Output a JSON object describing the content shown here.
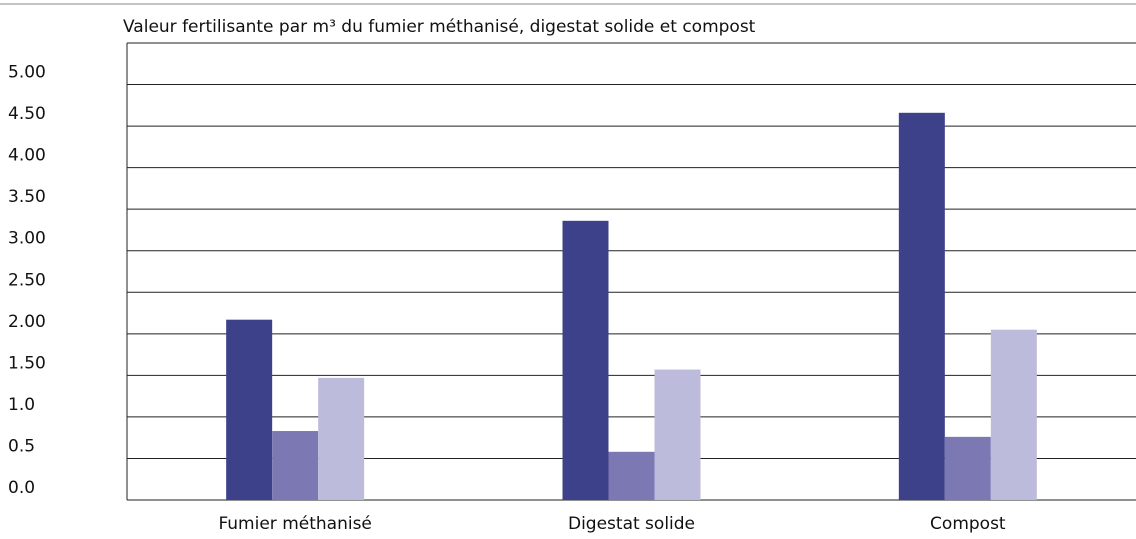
{
  "chart_data": {
    "type": "bar",
    "title": "Valeur fertilisante par m³ du fumier méthanisé, digestat solide et compost",
    "categories": [
      "Fumier méthanisé",
      "Digestat solide",
      "Compost"
    ],
    "series": [
      {
        "color": "#3d4189",
        "values": [
          2.17,
          3.36,
          4.66
        ]
      },
      {
        "color": "#7b78b3",
        "values": [
          0.83,
          0.58,
          0.76
        ]
      },
      {
        "color": "#bdbbdb",
        "values": [
          1.47,
          1.57,
          2.05
        ]
      }
    ],
    "ylim": [
      0,
      5.5
    ],
    "yticks": [
      {
        "value": 0,
        "label": "0.0"
      },
      0.5,
      {
        "value": 1,
        "label": "1.0"
      },
      {
        "value": 1.5,
        "label": "1.50"
      },
      {
        "value": 2,
        "label": "2.00"
      },
      {
        "value": 2.5,
        "label": "2.50"
      },
      {
        "value": 3,
        "label": "3.00"
      },
      {
        "value": 3.5,
        "label": "3.50"
      },
      {
        "value": 4,
        "label": "4.00"
      },
      {
        "value": 4.5,
        "label": "4.50"
      },
      {
        "value": 5,
        "label": "5.00"
      }
    ],
    "grid": true
  }
}
